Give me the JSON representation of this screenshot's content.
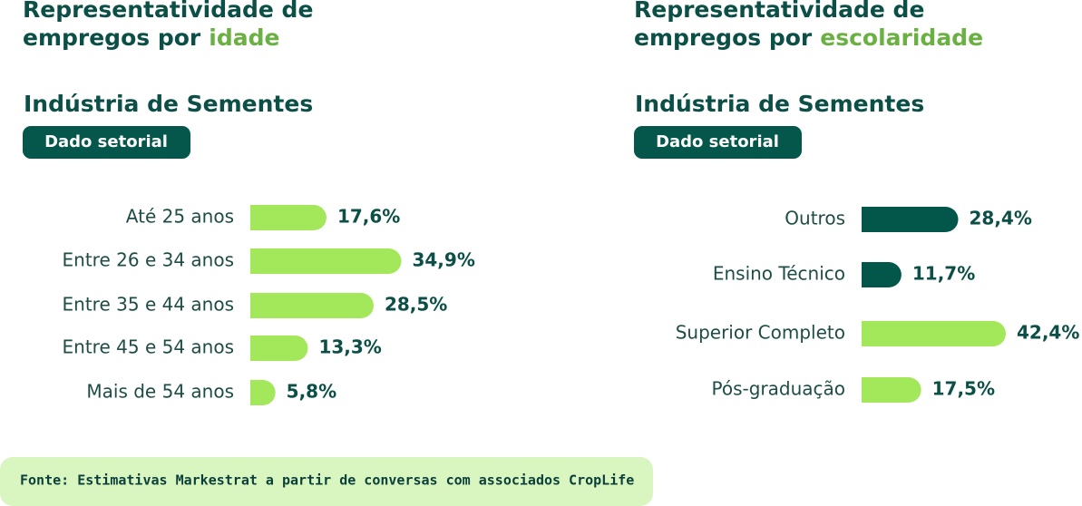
{
  "chart_data": [
    {
      "type": "bar",
      "title_lines": [
        "Representatividade de",
        "empregos por"
      ],
      "title_highlight": "idade",
      "subtitle": "Indústria de Sementes",
      "badge": "Dado setorial",
      "categories": [
        "Até 25 anos",
        "Entre 26 e 34 anos",
        "Entre 35 e 44 anos",
        "Entre 45 e 54 anos",
        "Mais de 54 anos"
      ],
      "values": [
        17.6,
        34.9,
        28.5,
        13.3,
        5.8
      ],
      "value_labels": [
        "17,6%",
        "34,9%",
        "28,5%",
        "13,3%",
        "5,8%"
      ],
      "colors": [
        "#a3e85a",
        "#a3e85a",
        "#a3e85a",
        "#a3e85a",
        "#a3e85a"
      ]
    },
    {
      "type": "bar",
      "title_lines": [
        "Representatividade de",
        "empregos por"
      ],
      "title_highlight": "escolaridade",
      "subtitle": "Indústria de Sementes",
      "badge": "Dado setorial",
      "categories": [
        "Outros",
        "Ensino Técnico",
        "Superior Completo",
        "Pós-graduação"
      ],
      "values": [
        28.4,
        11.7,
        42.4,
        17.5
      ],
      "value_labels": [
        "28,4%",
        "11,7%",
        "42,4%",
        "17,5%"
      ],
      "colors": [
        "#02574a",
        "#02574a",
        "#a3e85a",
        "#a3e85a"
      ]
    }
  ],
  "footer": {
    "source": "Fonte: Estimativas Markestrat a partir de conversas com associados CropLife"
  }
}
